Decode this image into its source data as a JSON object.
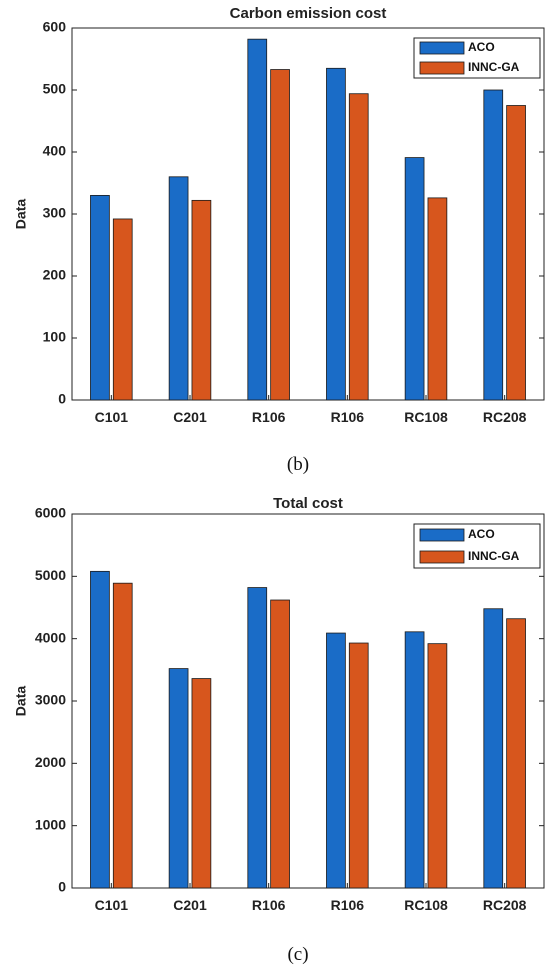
{
  "colors": {
    "aco": "#1a6cc7",
    "innc": "#d7561d",
    "axis": "#222222"
  },
  "chart_data": [
    {
      "type": "bar",
      "title": "Carbon emission cost",
      "ylabel": "Data",
      "xlabel": "",
      "categories": [
        "C101",
        "C201",
        "R106",
        "R106",
        "RC108",
        "RC208"
      ],
      "series": [
        {
          "name": "ACO",
          "values": [
            330,
            360,
            582,
            535,
            391,
            500
          ]
        },
        {
          "name": "INNC-GA",
          "values": [
            292,
            322,
            533,
            494,
            326,
            475
          ]
        }
      ],
      "ylim": [
        0,
        600
      ],
      "yticks": [
        0,
        100,
        200,
        300,
        400,
        500,
        600
      ],
      "grid": false,
      "legend_position": "top-right",
      "caption": "(b)"
    },
    {
      "type": "bar",
      "title": "Total cost",
      "ylabel": "Data",
      "xlabel": "",
      "categories": [
        "C101",
        "C201",
        "R106",
        "R106",
        "RC108",
        "RC208"
      ],
      "series": [
        {
          "name": "ACO",
          "values": [
            5080,
            3520,
            4820,
            4090,
            4110,
            4480
          ]
        },
        {
          "name": "INNC-GA",
          "values": [
            4890,
            3360,
            4620,
            3930,
            3920,
            4320
          ]
        }
      ],
      "ylim": [
        0,
        6000
      ],
      "yticks": [
        0,
        1000,
        2000,
        3000,
        4000,
        5000,
        6000
      ],
      "grid": false,
      "legend_position": "top-right",
      "caption": "(c)"
    }
  ]
}
